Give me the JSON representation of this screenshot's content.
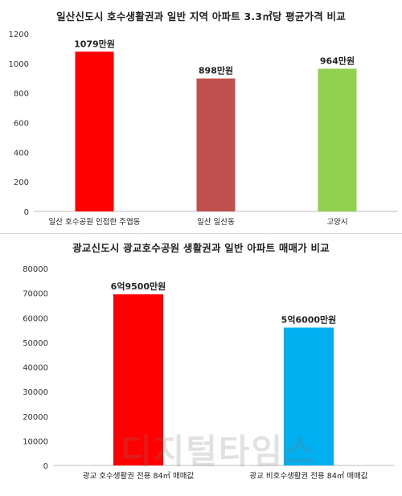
{
  "chart_data": [
    {
      "type": "bar",
      "title": "일산신도시 호수생활권과 일반 지역 아파트 3.3㎡당 평균가격  비교",
      "categories": [
        "일산 호수공원 인접한 주엽동",
        "일산 일산동",
        "고양시"
      ],
      "values": [
        1079,
        898,
        964
      ],
      "data_labels": [
        "1079만원",
        "898만원",
        "964만원"
      ],
      "colors": [
        "#ff0000",
        "#c0504d",
        "#92d050"
      ],
      "yticks": [
        "0",
        "200",
        "400",
        "600",
        "800",
        "1000",
        "1200"
      ],
      "ylim": [
        0,
        1200
      ],
      "grid": false
    },
    {
      "type": "bar",
      "title": "광교신도시 광교호수공원 생활권과  일반 아파트 매매가 비교",
      "categories": [
        "광교 호수생활권 전용 84㎡ 매매값",
        "광교 비호수생활권 전용 84㎡ 매매값"
      ],
      "values": [
        69500,
        56000
      ],
      "data_labels": [
        "6억9500만원",
        "5억6000만원"
      ],
      "colors": [
        "#ff0000",
        "#00b0f0"
      ],
      "yticks": [
        "0",
        "10000",
        "20000",
        "30000",
        "40000",
        "50000",
        "60000",
        "70000",
        "80000"
      ],
      "ylim": [
        0,
        80000
      ],
      "grid": false
    }
  ],
  "watermark": "디지털타임스"
}
